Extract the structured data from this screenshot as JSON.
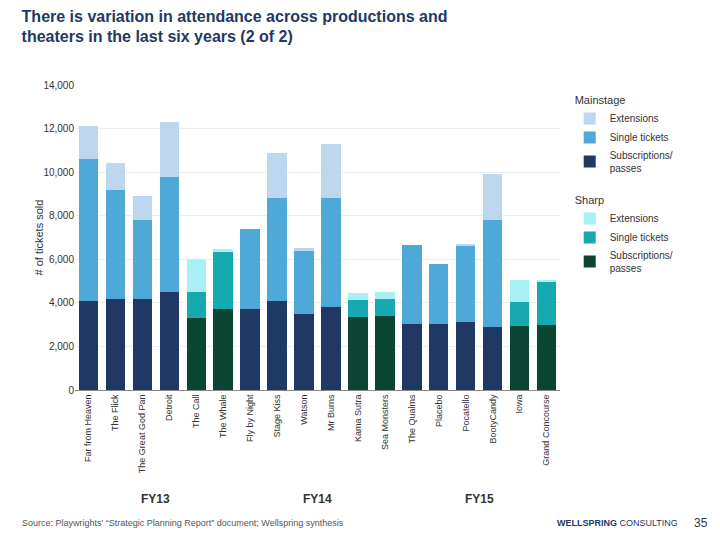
{
  "chart_data": {
    "type": "bar",
    "stacked": true,
    "title": [
      "There is variation in attendance across productions and",
      "theaters in the last six years (2 of 2)"
    ],
    "ylabel": "# of tickets sold",
    "categories": [
      "Far from Heaven",
      "The Flick",
      "The Great God Pan",
      "Detroit",
      "The Call",
      "The Whale",
      "Fly by Night",
      "Stage Kiss",
      "Watson",
      "Mr Burns",
      "Kama Sutra",
      "Sea Monsters",
      "The Qualms",
      "Placebo",
      "Pocatello",
      "BootyCandy",
      "Iowa",
      "Grand Concourse"
    ],
    "groups": [
      {
        "label": "FY13",
        "from": "Far from Heaven",
        "to": "The Whale"
      },
      {
        "label": "FY14",
        "from": "Fly by Night",
        "to": "Sea Monsters"
      },
      {
        "label": "FY15",
        "from": "The Qualms",
        "to": "Grand Concourse"
      }
    ],
    "series": [
      {
        "name": "Subscriptions/\npasses",
        "group": "Mainstage",
        "color": "#1f3864",
        "values": [
          4100,
          4200,
          4200,
          4500,
          0,
          0,
          3700,
          4100,
          3500,
          3800,
          0,
          0,
          3050,
          3050,
          3100,
          2900,
          0,
          0
        ]
      },
      {
        "name": "Single tickets",
        "group": "Mainstage",
        "color": "#4ea8d8",
        "values": [
          6500,
          5000,
          3600,
          5300,
          0,
          0,
          3700,
          4700,
          2900,
          5000,
          0,
          0,
          3600,
          2750,
          3500,
          4900,
          0,
          0
        ]
      },
      {
        "name": "Extensions",
        "group": "Mainstage",
        "color": "#bdd7ee",
        "values": [
          1500,
          1200,
          1100,
          2500,
          0,
          0,
          0,
          2100,
          100,
          2500,
          0,
          0,
          0,
          0,
          100,
          2100,
          0,
          0
        ]
      },
      {
        "name": "Subscriptions/\npasses",
        "group": "Sharp",
        "color": "#0d4535",
        "values": [
          0,
          0,
          0,
          0,
          3300,
          3700,
          0,
          0,
          0,
          0,
          3350,
          3400,
          0,
          0,
          0,
          0,
          2950,
          3000
        ]
      },
      {
        "name": "Single tickets",
        "group": "Sharp",
        "color": "#17a9b0",
        "values": [
          0,
          0,
          0,
          0,
          1200,
          2650,
          0,
          0,
          0,
          0,
          800,
          800,
          0,
          0,
          0,
          0,
          1100,
          1950
        ]
      },
      {
        "name": "Extensions",
        "group": "Sharp",
        "color": "#a8f0f4",
        "values": [
          0,
          0,
          0,
          0,
          1500,
          100,
          0,
          0,
          0,
          0,
          300,
          300,
          0,
          0,
          0,
          0,
          1000,
          100
        ]
      }
    ],
    "ylim": [
      0,
      14000
    ],
    "yticks": [
      0,
      {
        "value": 2000,
        "label": "2,000"
      },
      {
        "value": 4000,
        "label": "4,000"
      },
      {
        "value": 6000,
        "label": "6,000"
      },
      {
        "value": 8000,
        "label": "8,000"
      },
      {
        "value": 10000,
        "label": "10,000"
      },
      {
        "value": 12000,
        "label": "12,000"
      },
      {
        "value": 14000,
        "label": "14,000"
      }
    ],
    "grid": true,
    "legend": "right",
    "source": "Source: Playwrights' “Strategic Planning Report” document; Wellspring synthesis",
    "page_number": "35",
    "logo": [
      "WELLSPRING",
      "CONSULTING"
    ]
  }
}
